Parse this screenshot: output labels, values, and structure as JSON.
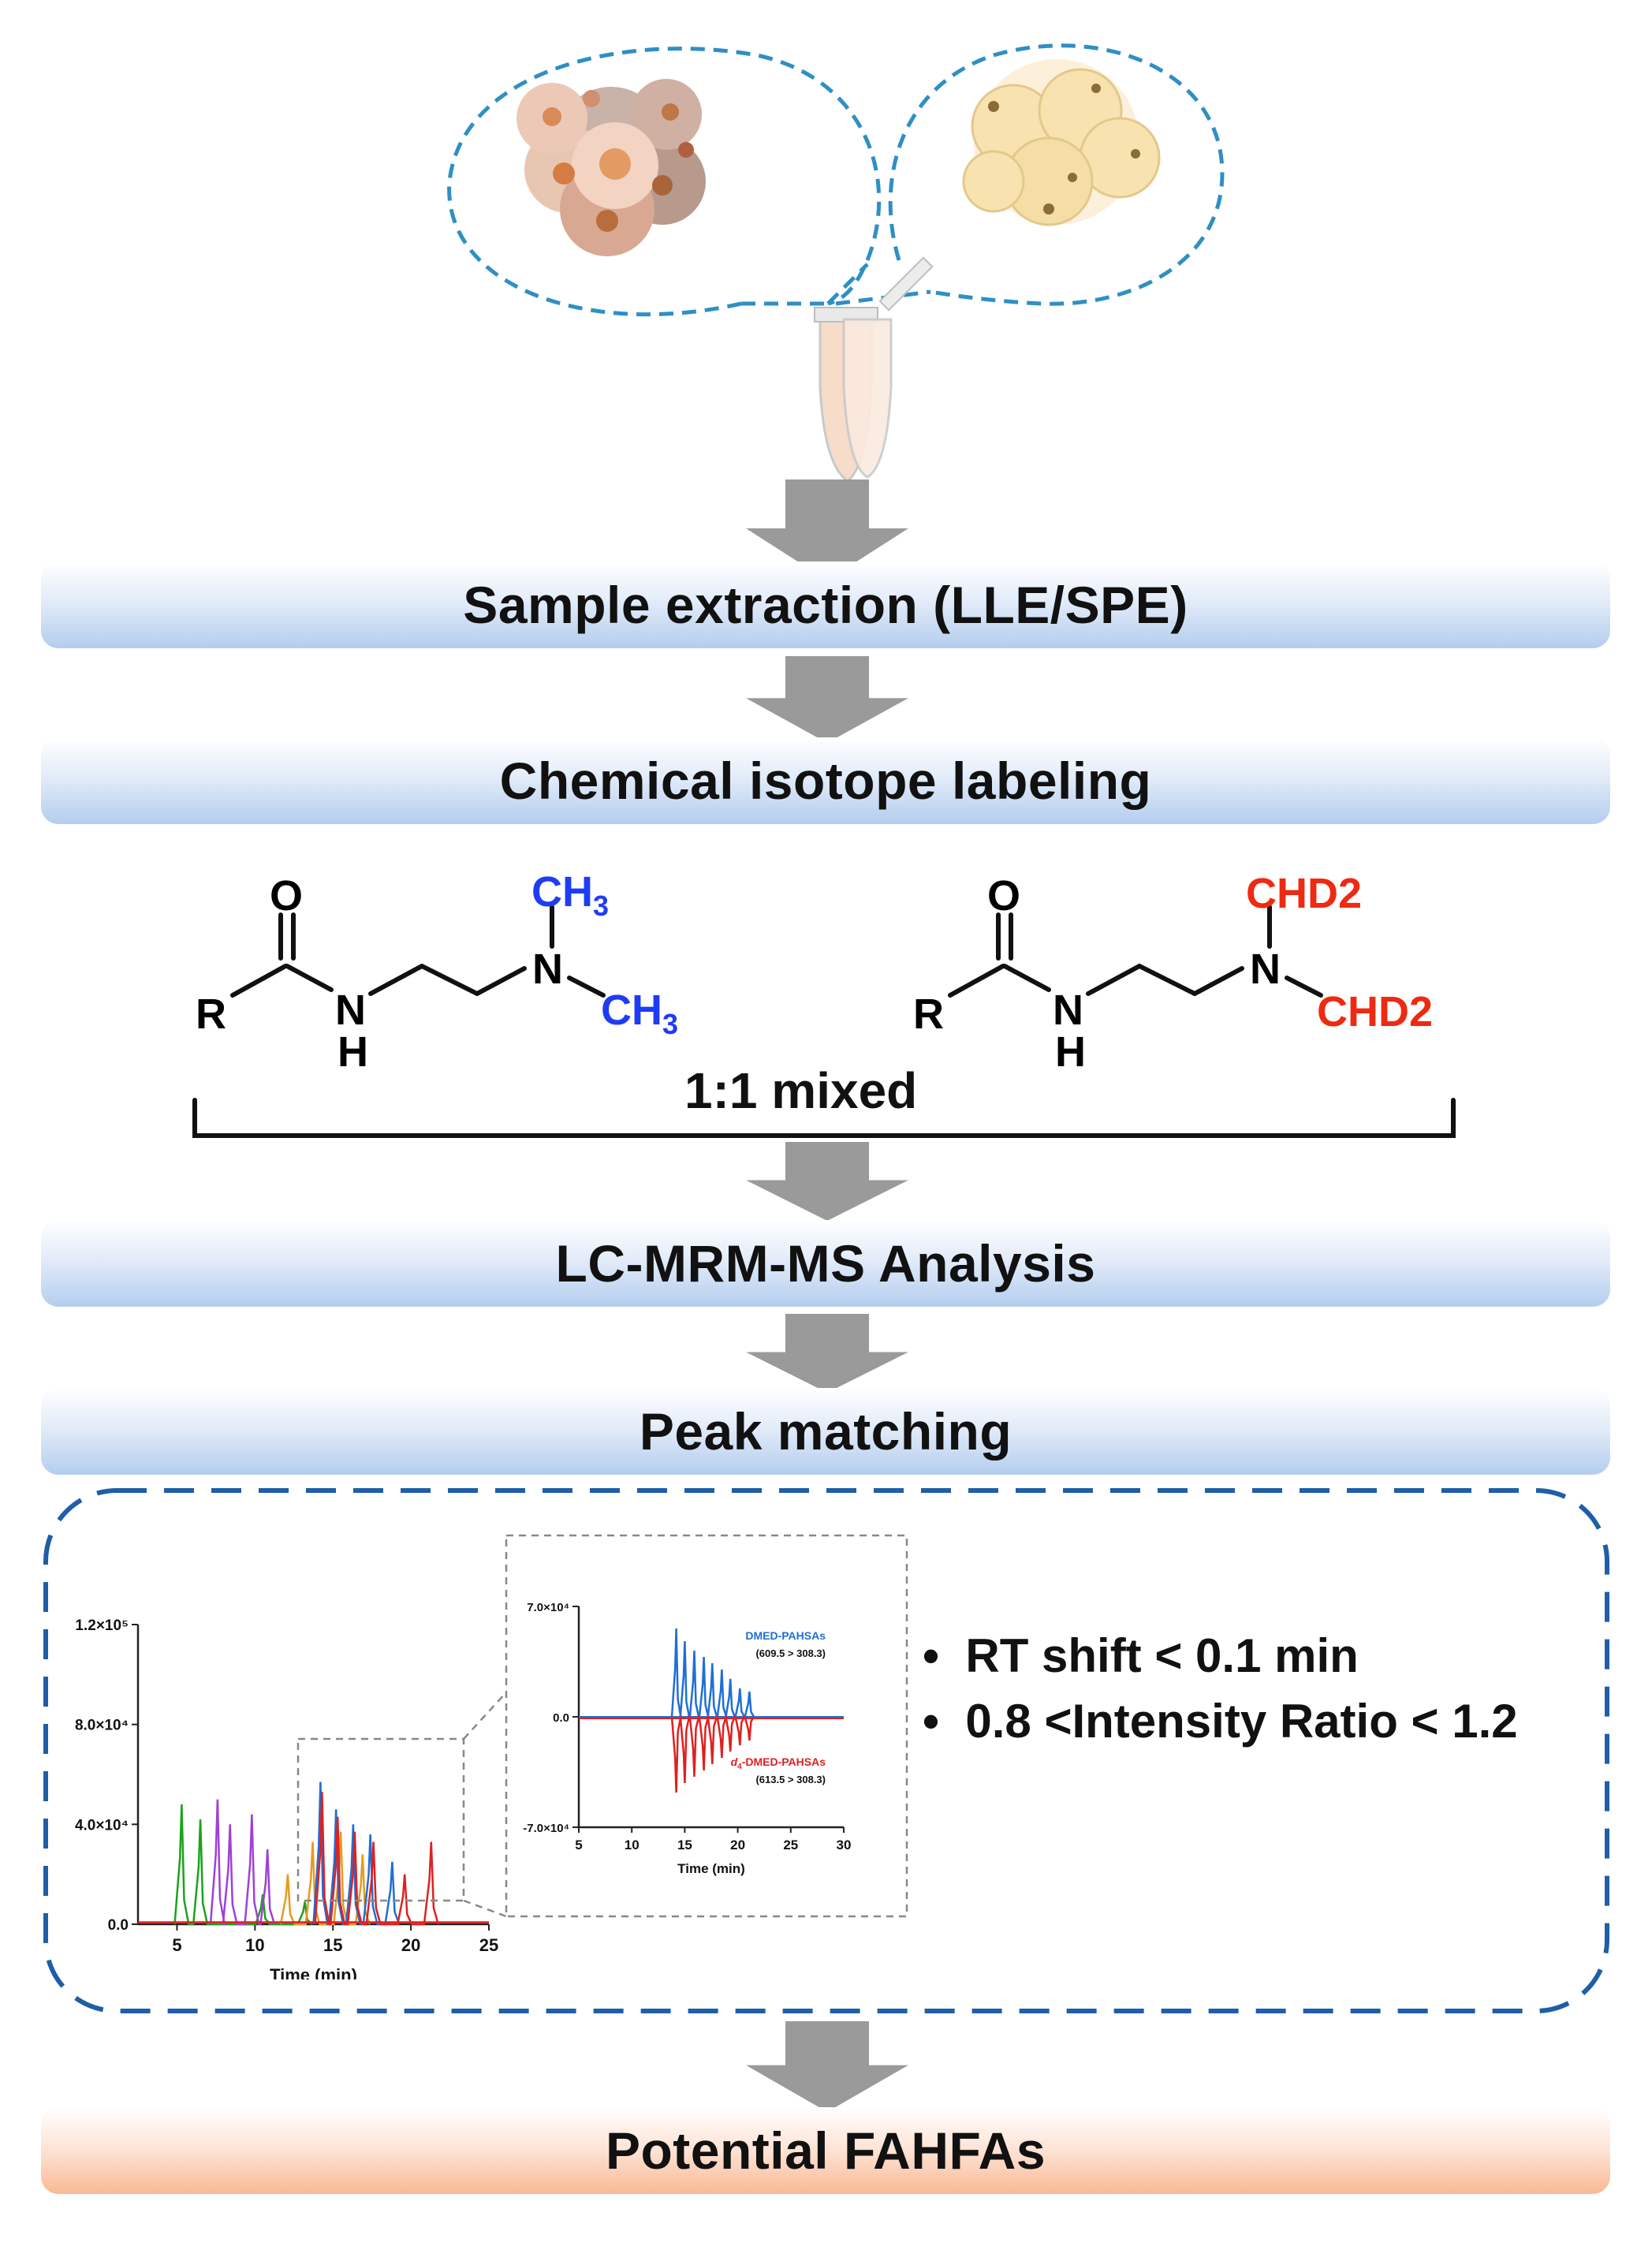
{
  "steps": {
    "sample_extraction": "Sample extraction (LLE/SPE)",
    "isotope_labeling": "Chemical isotope labeling",
    "lc_mrm_ms": "LC-MRM-MS Analysis",
    "peak_matching": "Peak matching",
    "potential": "Potential FAHFAs"
  },
  "chemistry": {
    "left": {
      "O": "O",
      "R": "R",
      "N": "N",
      "NH_N": "N",
      "NH_H": "H",
      "top": "CH",
      "top_sub": "3",
      "bottom": "CH",
      "bottom_sub": "3"
    },
    "right": {
      "O": "O",
      "R": "R",
      "N": "N",
      "NH_N": "N",
      "NH_H": "H",
      "top": "CHD2",
      "bottom": "CHD2"
    },
    "mixed_label": "1:1 mixed",
    "colors": {
      "light": "#1f3cf5",
      "heavy": "#ee2a12"
    }
  },
  "criteria": [
    "RT shift < 0.1 min",
    "0.8 <Intensity Ratio < 1.2"
  ],
  "chart_data": [
    {
      "type": "line",
      "xlabel": "Time (min)",
      "ylabel": "",
      "xlim": [
        2.5,
        25
      ],
      "ylim": [
        0,
        120000
      ],
      "xticks": [
        "5",
        "10",
        "15",
        "20",
        "25"
      ],
      "yticks": [
        "0.0",
        "4.0×10⁴",
        "8.0×10⁴",
        "1.2×10⁵"
      ],
      "grid": false,
      "series": [
        {
          "color": "#1aa31a",
          "x": [
            5.3,
            6.5,
            10.5,
            13.2
          ],
          "y": [
            48000,
            42000,
            12000,
            9000
          ]
        },
        {
          "color": "#a040d8",
          "x": [
            7.6,
            8.4,
            9.8,
            10.8
          ],
          "y": [
            50000,
            40000,
            44000,
            30000
          ]
        },
        {
          "color": "#e89a20",
          "x": [
            12.1,
            13.7,
            15.5,
            16.9
          ],
          "y": [
            20000,
            33000,
            37000,
            28000
          ]
        },
        {
          "color": "#1f6fd6",
          "x": [
            14.2,
            15.2,
            16.3,
            17.4,
            18.8
          ],
          "y": [
            57000,
            46000,
            40000,
            36000,
            25000
          ]
        },
        {
          "color": "#e02020",
          "x": [
            14.3,
            15.3,
            16.4,
            17.6,
            19.6,
            21.3
          ],
          "y": [
            53000,
            43000,
            37000,
            33000,
            20000,
            33000
          ]
        }
      ]
    },
    {
      "type": "line",
      "xlabel": "Time (min)",
      "ylabel": "",
      "xlim": [
        5,
        30
      ],
      "ylim": [
        -70000,
        70000
      ],
      "xticks": [
        "5",
        "10",
        "15",
        "20",
        "25",
        "30"
      ],
      "yticks": [
        "-7.0×10⁴",
        "0.0",
        "7.0×10⁴"
      ],
      "grid": false,
      "series": [
        {
          "name": "DMED-PAHSAs",
          "transition": "(609.5 > 308.3)",
          "color": "#1f6fd6",
          "x": [
            14.2,
            15.0,
            15.9,
            16.8,
            17.6,
            18.5,
            19.3,
            20.2,
            21.1
          ],
          "y": [
            56000,
            48000,
            42000,
            38000,
            34000,
            30000,
            24000,
            18000,
            16000
          ]
        },
        {
          "name_prefix": "d",
          "name_sub": "4",
          "name": "-DMED-PAHSAs",
          "transition": "(613.5 > 308.3)",
          "color": "#e02020",
          "x": [
            14.2,
            15.0,
            15.9,
            16.8,
            17.6,
            18.5,
            19.3,
            20.2,
            21.1
          ],
          "y": [
            -48000,
            -42000,
            -38000,
            -34000,
            -30000,
            -26000,
            -22000,
            -18000,
            -15000
          ]
        }
      ]
    }
  ]
}
